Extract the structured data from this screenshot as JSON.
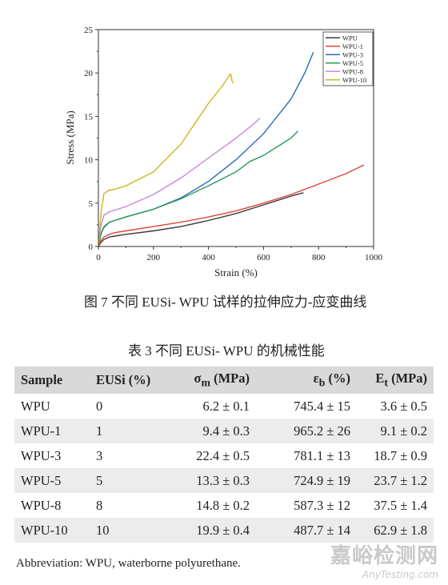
{
  "chart_data": {
    "type": "line",
    "xlabel": "Strain (%)",
    "ylabel": "Stress (MPa)",
    "xlim": [
      0,
      1000
    ],
    "ylim": [
      0,
      25
    ],
    "xticks": [
      "0",
      "200",
      "400",
      "600",
      "800",
      "1000"
    ],
    "yticks": [
      "0",
      "5",
      "10",
      "15",
      "20",
      "25"
    ],
    "legend_position": "top-right",
    "series": [
      {
        "name": "WPU",
        "color": "#3a3a3a",
        "x": [
          0,
          10,
          20,
          40,
          60,
          100,
          200,
          300,
          400,
          500,
          600,
          700,
          745
        ],
        "y": [
          0,
          0.5,
          0.8,
          1.1,
          1.2,
          1.4,
          1.8,
          2.3,
          3.0,
          3.8,
          4.8,
          5.8,
          6.2
        ]
      },
      {
        "name": "WPU-1",
        "color": "#e0443c",
        "x": [
          0,
          10,
          20,
          40,
          60,
          100,
          200,
          300,
          400,
          500,
          600,
          700,
          800,
          900,
          965
        ],
        "y": [
          0,
          0.7,
          1.1,
          1.4,
          1.6,
          1.8,
          2.3,
          2.8,
          3.4,
          4.1,
          5.0,
          6.0,
          7.2,
          8.4,
          9.4
        ]
      },
      {
        "name": "WPU-3",
        "color": "#2a6bbf",
        "x": [
          0,
          10,
          20,
          40,
          60,
          100,
          200,
          300,
          400,
          500,
          600,
          700,
          750,
          781
        ],
        "y": [
          0,
          1.5,
          2.2,
          2.8,
          3.0,
          3.4,
          4.3,
          5.6,
          7.5,
          10.0,
          13.0,
          17.0,
          20.0,
          22.4
        ]
      },
      {
        "name": "WPU-5",
        "color": "#2c9a56",
        "x": [
          0,
          10,
          20,
          40,
          60,
          100,
          200,
          300,
          400,
          500,
          550,
          600,
          700,
          725
        ],
        "y": [
          0,
          1.5,
          2.3,
          2.8,
          3.0,
          3.4,
          4.3,
          5.5,
          7.0,
          8.6,
          9.8,
          10.5,
          12.5,
          13.3
        ]
      },
      {
        "name": "WPU-8",
        "color": "#c78ad8",
        "x": [
          0,
          10,
          20,
          40,
          60,
          100,
          200,
          300,
          400,
          500,
          560,
          587
        ],
        "y": [
          0,
          2.5,
          3.6,
          4.0,
          4.2,
          4.6,
          6.0,
          7.9,
          10.2,
          12.5,
          14.0,
          14.8
        ]
      },
      {
        "name": "WPU-10",
        "color": "#c8b820",
        "x": [
          0,
          10,
          20,
          40,
          60,
          100,
          200,
          300,
          400,
          450,
          480,
          488
        ],
        "y": [
          0,
          4.0,
          6.1,
          6.5,
          6.6,
          7.0,
          8.6,
          11.8,
          16.5,
          18.5,
          19.9,
          18.8
        ]
      }
    ]
  },
  "figure": {
    "caption": "图 7 不同 EUSi- WPU 试样的拉伸应力-应变曲线"
  },
  "table": {
    "caption": "表 3  不同 EUSi- WPU 的机械性能",
    "headers": {
      "sample": "Sample",
      "eusi": "EUSi (%)",
      "sigma_sym": "σ",
      "sigma_sub": "m",
      "sigma_unit": " (MPa)",
      "eps_sym": "ε",
      "eps_sub": "b",
      "eps_unit": " (%)",
      "e_sym": "E",
      "e_sub": "t",
      "e_unit": " (MPa)"
    },
    "rows": [
      {
        "sample": "WPU",
        "eusi": "0",
        "sigma": "6.2 ± 0.1",
        "eps": "745.4 ± 15",
        "e": "3.6 ± 0.5"
      },
      {
        "sample": "WPU-1",
        "eusi": "1",
        "sigma": "9.4 ± 0.3",
        "eps": "965.2 ± 26",
        "e": "9.1 ± 0.2"
      },
      {
        "sample": "WPU-3",
        "eusi": "3",
        "sigma": "22.4 ± 0.5",
        "eps": "781.1 ± 13",
        "e": "18.7 ± 0.9"
      },
      {
        "sample": "WPU-5",
        "eusi": "5",
        "sigma": "13.3 ± 0.3",
        "eps": "724.9 ± 19",
        "e": "23.7 ± 1.2"
      },
      {
        "sample": "WPU-8",
        "eusi": "8",
        "sigma": "14.8 ± 0.2",
        "eps": "587.3 ± 12",
        "e": "37.5 ± 1.4"
      },
      {
        "sample": "WPU-10",
        "eusi": "10",
        "sigma": "19.9 ± 0.4",
        "eps": "487.7 ± 14",
        "e": "62.9 ± 1.8"
      }
    ]
  },
  "abbreviation": "Abbreviation: WPU, waterborne polyurethane.",
  "watermark": {
    "cn": "嘉峪检测网",
    "en": "AnyTesting.com"
  }
}
